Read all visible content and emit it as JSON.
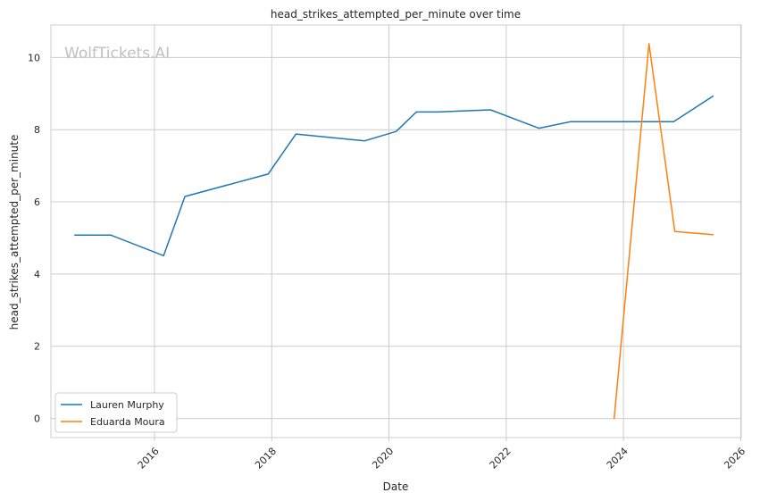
{
  "chart_data": {
    "type": "line",
    "title": "head_strikes_attempted_per_minute over time",
    "xlabel": "Date",
    "ylabel": "head_strikes_attempted_per_minute",
    "watermark": "WolfTickets.AI",
    "x_is_date": true,
    "xlim": [
      "2014-03-27",
      "2026-01-04"
    ],
    "ylim": [
      -0.53,
      10.9
    ],
    "x_ticks": [
      "2016",
      "2018",
      "2020",
      "2022",
      "2024",
      "2026"
    ],
    "y_ticks": [
      0,
      2,
      4,
      6,
      8,
      10
    ],
    "grid": true,
    "legend_position": "lower-left",
    "series": [
      {
        "name": "Lauren Murphy",
        "color": "#1f77b4",
        "points": [
          {
            "x": "2014-08-23",
            "y": 5.08
          },
          {
            "x": "2015-04-04",
            "y": 5.08
          },
          {
            "x": "2016-02-27",
            "y": 4.51
          },
          {
            "x": "2016-07-09",
            "y": 6.15
          },
          {
            "x": "2017-12-09",
            "y": 6.77
          },
          {
            "x": "2018-06-01",
            "y": 7.88
          },
          {
            "x": "2019-08-03",
            "y": 7.69
          },
          {
            "x": "2020-02-15",
            "y": 7.95
          },
          {
            "x": "2020-06-20",
            "y": 8.49
          },
          {
            "x": "2020-10-31",
            "y": 8.49
          },
          {
            "x": "2021-09-25",
            "y": 8.55
          },
          {
            "x": "2022-07-23",
            "y": 8.04
          },
          {
            "x": "2023-02-04",
            "y": 8.22
          },
          {
            "x": "2024-11-09",
            "y": 8.22
          },
          {
            "x": "2025-07-12",
            "y": 8.93
          }
        ]
      },
      {
        "name": "Eduarda Moura",
        "color": "#ff7f0e",
        "points": [
          {
            "x": "2023-11-04",
            "y": 0.0
          },
          {
            "x": "2024-06-08",
            "y": 10.38
          },
          {
            "x": "2024-11-16",
            "y": 5.18
          },
          {
            "x": "2025-07-12",
            "y": 5.09
          }
        ]
      }
    ]
  }
}
